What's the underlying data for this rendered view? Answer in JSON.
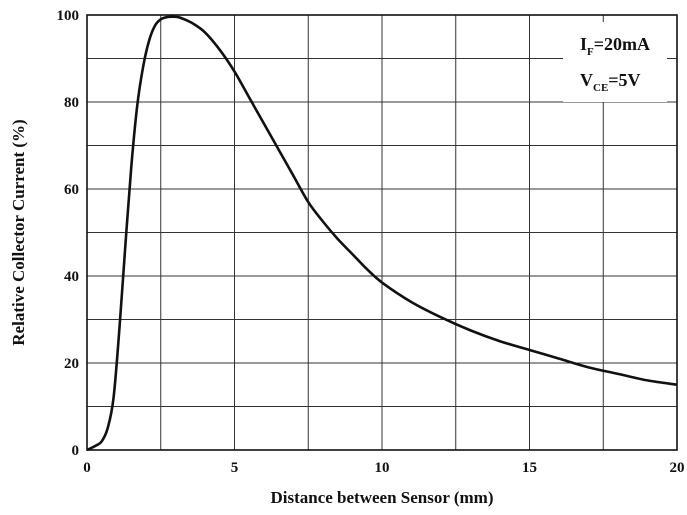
{
  "chart_data": {
    "type": "line",
    "title": "",
    "xlabel": "Distance between Sensor (mm)",
    "ylabel": "Relative Collector Current (%)",
    "xlim": [
      0,
      20
    ],
    "ylim": [
      0,
      100
    ],
    "x_ticks": [
      0,
      5,
      10,
      15,
      20
    ],
    "y_ticks": [
      0,
      20,
      40,
      60,
      80,
      100
    ],
    "grid": true,
    "annotations": [
      {
        "main": "I",
        "sub": "F",
        "rest": "=20mA"
      },
      {
        "main": "V",
        "sub": "CE",
        "rest": "=5V"
      }
    ],
    "series": [
      {
        "x": [
          0,
          0.3,
          0.5,
          0.7,
          0.9,
          1.1,
          1.3,
          1.5,
          1.7,
          1.9,
          2.1,
          2.3,
          2.5,
          2.7,
          2.9,
          3.1,
          3.3,
          3.6,
          4.0,
          4.5,
          5.0,
          5.5,
          6.0,
          6.5,
          7.0,
          7.5,
          8.0,
          8.5,
          9.0,
          9.5,
          10.0,
          11.0,
          12.0,
          13.0,
          14.0,
          15.0,
          16.0,
          17.0,
          18.0,
          19.0,
          20.0
        ],
        "y": [
          0,
          1,
          2,
          5,
          12,
          28,
          47,
          65,
          79,
          88,
          94,
          97.5,
          99,
          99.5,
          99.6,
          99.5,
          99,
          98,
          96,
          92,
          87,
          81,
          75,
          69,
          63,
          57,
          52.5,
          48.5,
          45,
          41.5,
          38.5,
          34,
          30.5,
          27.5,
          25,
          23,
          21,
          19,
          17.5,
          16,
          15
        ]
      }
    ]
  }
}
